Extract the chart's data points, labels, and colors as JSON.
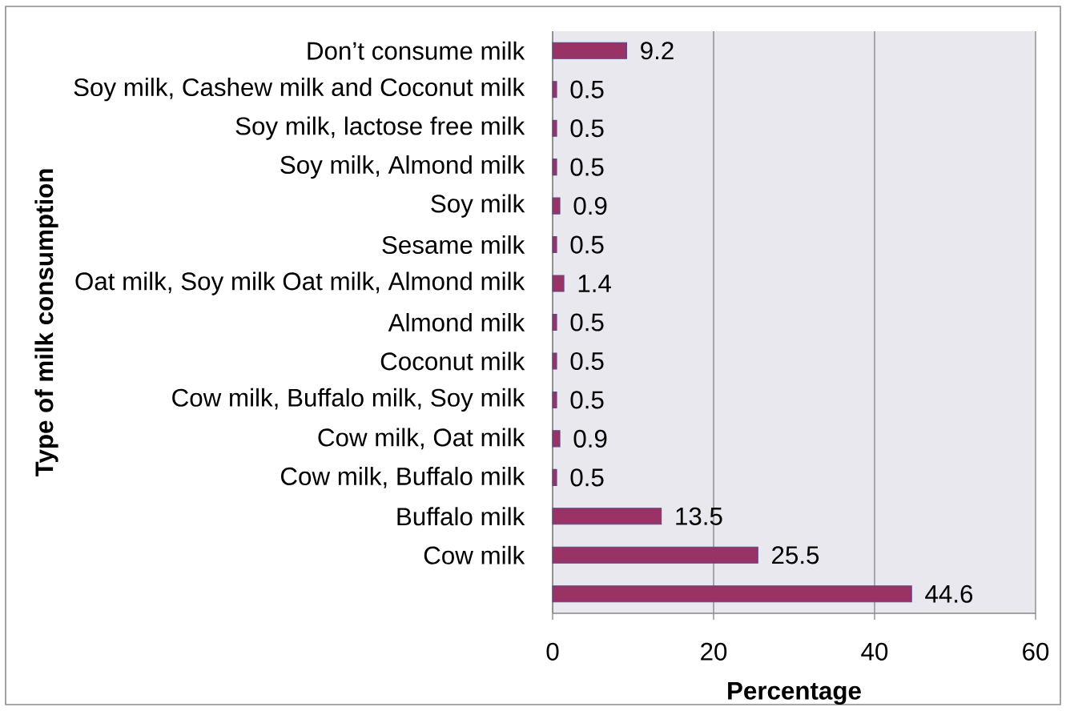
{
  "chart_data": {
    "type": "bar",
    "orientation": "horizontal",
    "xlabel": "Percentage",
    "ylabel": "Type of milk consumption",
    "categories": [
      "Don’t consume milk",
      "Soy milk, Cashew milk and Coconut milk",
      "Soy milk, lactose free milk",
      "Soy milk, Almond milk",
      "Soy milk",
      "Sesame milk",
      "Oat milk, Soy milk Oat milk, Almond milk",
      "Almond milk",
      "Coconut milk",
      "Cow milk, Buffalo milk, Soy milk",
      "Cow milk, Oat milk",
      "Cow milk, Buffalo milk",
      "Buffalo milk",
      "Cow milk",
      null
    ],
    "values": [
      9.2,
      0.5,
      0.5,
      0.5,
      0.9,
      0.5,
      1.4,
      0.5,
      0.5,
      0.5,
      0.9,
      0.5,
      13.5,
      25.5,
      44.6
    ],
    "color": "#993366",
    "xlim": [
      0,
      60
    ],
    "xticks": [
      0,
      20,
      40,
      60
    ],
    "grid": "x",
    "data_labels": true
  }
}
